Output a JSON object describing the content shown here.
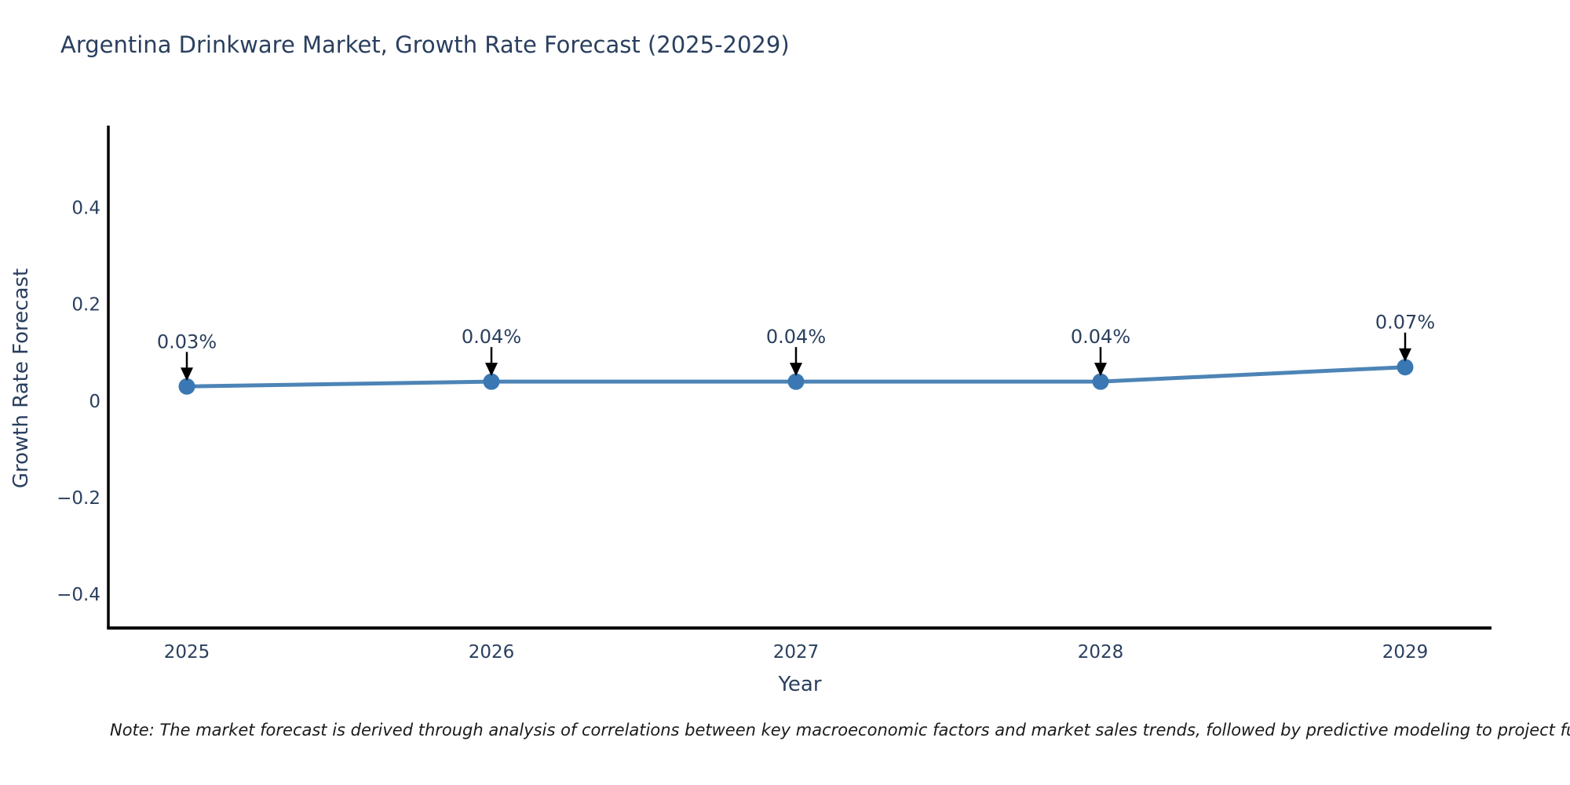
{
  "title": "Argentina Drinkware Market, Growth Rate Forecast (2025-2029)",
  "note": {
    "text": "Note: The market forecast is derived through analysis of correlations between key macroeconomic factors and market sales trends, followed by predictive modeling to project future sales."
  },
  "colors": {
    "title_text": "#2a3f5f",
    "tick_text": "#2a3f5f",
    "annotation_text": "#2a3f5f",
    "axis_line": "#000000",
    "series_line": "#4d84b6",
    "marker_fill": "#3b78b3",
    "arrow": "#000000",
    "background": "#ffffff",
    "note_text": "#1a1a1a"
  },
  "chart_data": {
    "type": "line",
    "title": "Argentina Drinkware Market, Growth Rate Forecast (2025-2029)",
    "xlabel": "Year",
    "ylabel": "Growth Rate Forecast",
    "x": [
      2025,
      2026,
      2027,
      2028,
      2029
    ],
    "y": [
      0.03,
      0.04,
      0.04,
      0.04,
      0.07
    ],
    "point_labels": [
      "0.03%",
      "0.04%",
      "0.04%",
      "0.04%",
      "0.07%"
    ],
    "xtick_labels": [
      "2025",
      "2026",
      "2027",
      "2028",
      "2029"
    ],
    "yticks": [
      0.4,
      0.2,
      0,
      -0.2,
      -0.4
    ],
    "ytick_labels": [
      "0.4",
      "0.2",
      "0",
      "−0.2",
      "−0.4"
    ],
    "ylim": [
      -0.47,
      0.57
    ],
    "grid": false,
    "legend": false,
    "annotation_style": "value label above each point with downward black arrow",
    "axes_shown": [
      "left",
      "bottom"
    ]
  }
}
